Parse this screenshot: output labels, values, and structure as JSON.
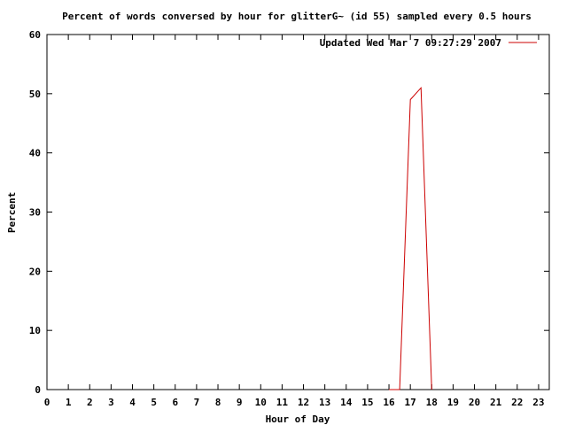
{
  "chart_data": {
    "type": "line",
    "title": "Percent of words conversed by hour for glitterG~ (id 55) sampled every 0.5 hours",
    "xlabel": "Hour of Day",
    "ylabel": "Percent",
    "xlim": [
      0,
      23.5
    ],
    "ylim": [
      0,
      60
    ],
    "xticks": [
      0,
      1,
      2,
      3,
      4,
      5,
      6,
      7,
      8,
      9,
      10,
      11,
      12,
      13,
      14,
      15,
      16,
      17,
      18,
      19,
      20,
      21,
      22,
      23
    ],
    "yticks": [
      0,
      10,
      20,
      30,
      40,
      50,
      60
    ],
    "grid": false,
    "legend_position": "top-right",
    "series": [
      {
        "name": "Updated Wed Mar  7 09:27:29 2007",
        "color": "#cc0000",
        "x": [
          16,
          16.5,
          17,
          17.5,
          18
        ],
        "y": [
          0,
          0,
          49,
          51,
          0
        ]
      }
    ]
  }
}
